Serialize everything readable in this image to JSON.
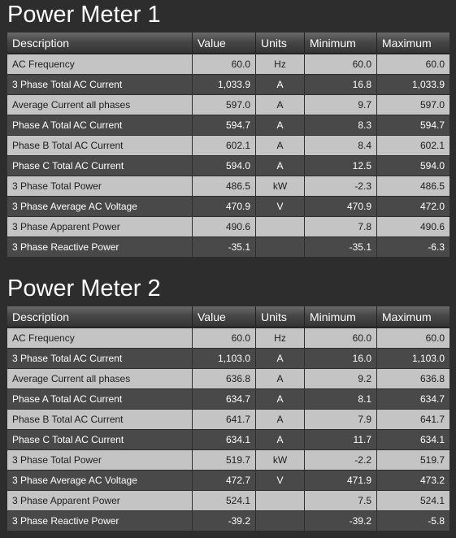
{
  "columns": [
    "Description",
    "Value",
    "Units",
    "Minimum",
    "Maximum"
  ],
  "meters": [
    {
      "title": "Power Meter 1",
      "rows": [
        {
          "description": "AC Frequency",
          "value": "60.0",
          "units": "Hz",
          "minimum": "60.0",
          "maximum": "60.0"
        },
        {
          "description": "3 Phase Total AC Current",
          "value": "1,033.9",
          "units": "A",
          "minimum": "16.8",
          "maximum": "1,033.9"
        },
        {
          "description": "Average Current all phases",
          "value": "597.0",
          "units": "A",
          "minimum": "9.7",
          "maximum": "597.0"
        },
        {
          "description": "Phase A Total AC Current",
          "value": "594.7",
          "units": "A",
          "minimum": "8.3",
          "maximum": "594.7"
        },
        {
          "description": "Phase B Total AC Current",
          "value": "602.1",
          "units": "A",
          "minimum": "8.4",
          "maximum": "602.1"
        },
        {
          "description": "Phase C Total AC Current",
          "value": "594.0",
          "units": "A",
          "minimum": "12.5",
          "maximum": "594.0"
        },
        {
          "description": "3 Phase Total Power",
          "value": "486.5",
          "units": "kW",
          "minimum": "-2.3",
          "maximum": "486.5"
        },
        {
          "description": "3 Phase Average AC Voltage",
          "value": "470.9",
          "units": "V",
          "minimum": "470.9",
          "maximum": "472.0"
        },
        {
          "description": "3 Phase Apparent Power",
          "value": "490.6",
          "units": "",
          "minimum": "7.8",
          "maximum": "490.6"
        },
        {
          "description": "3 Phase Reactive Power",
          "value": "-35.1",
          "units": "",
          "minimum": "-35.1",
          "maximum": "-6.3"
        }
      ]
    },
    {
      "title": "Power Meter 2",
      "rows": [
        {
          "description": "AC Frequency",
          "value": "60.0",
          "units": "Hz",
          "minimum": "60.0",
          "maximum": "60.0"
        },
        {
          "description": "3 Phase Total AC Current",
          "value": "1,103.0",
          "units": "A",
          "minimum": "16.0",
          "maximum": "1,103.0"
        },
        {
          "description": "Average Current all phases",
          "value": "636.8",
          "units": "A",
          "minimum": "9.2",
          "maximum": "636.8"
        },
        {
          "description": "Phase A Total AC Current",
          "value": "634.7",
          "units": "A",
          "minimum": "8.1",
          "maximum": "634.7"
        },
        {
          "description": "Phase B Total AC Current",
          "value": "641.7",
          "units": "A",
          "minimum": "7.9",
          "maximum": "641.7"
        },
        {
          "description": "Phase C Total AC Current",
          "value": "634.1",
          "units": "A",
          "minimum": "11.7",
          "maximum": "634.1"
        },
        {
          "description": "3 Phase Total Power",
          "value": "519.7",
          "units": "kW",
          "minimum": "-2.2",
          "maximum": "519.7"
        },
        {
          "description": "3 Phase Average AC Voltage",
          "value": "472.7",
          "units": "V",
          "minimum": "471.9",
          "maximum": "473.2"
        },
        {
          "description": "3 Phase Apparent Power",
          "value": "524.1",
          "units": "",
          "minimum": "7.5",
          "maximum": "524.1"
        },
        {
          "description": "3 Phase Reactive Power",
          "value": "-39.2",
          "units": "",
          "minimum": "-39.2",
          "maximum": "-5.8"
        }
      ]
    }
  ]
}
